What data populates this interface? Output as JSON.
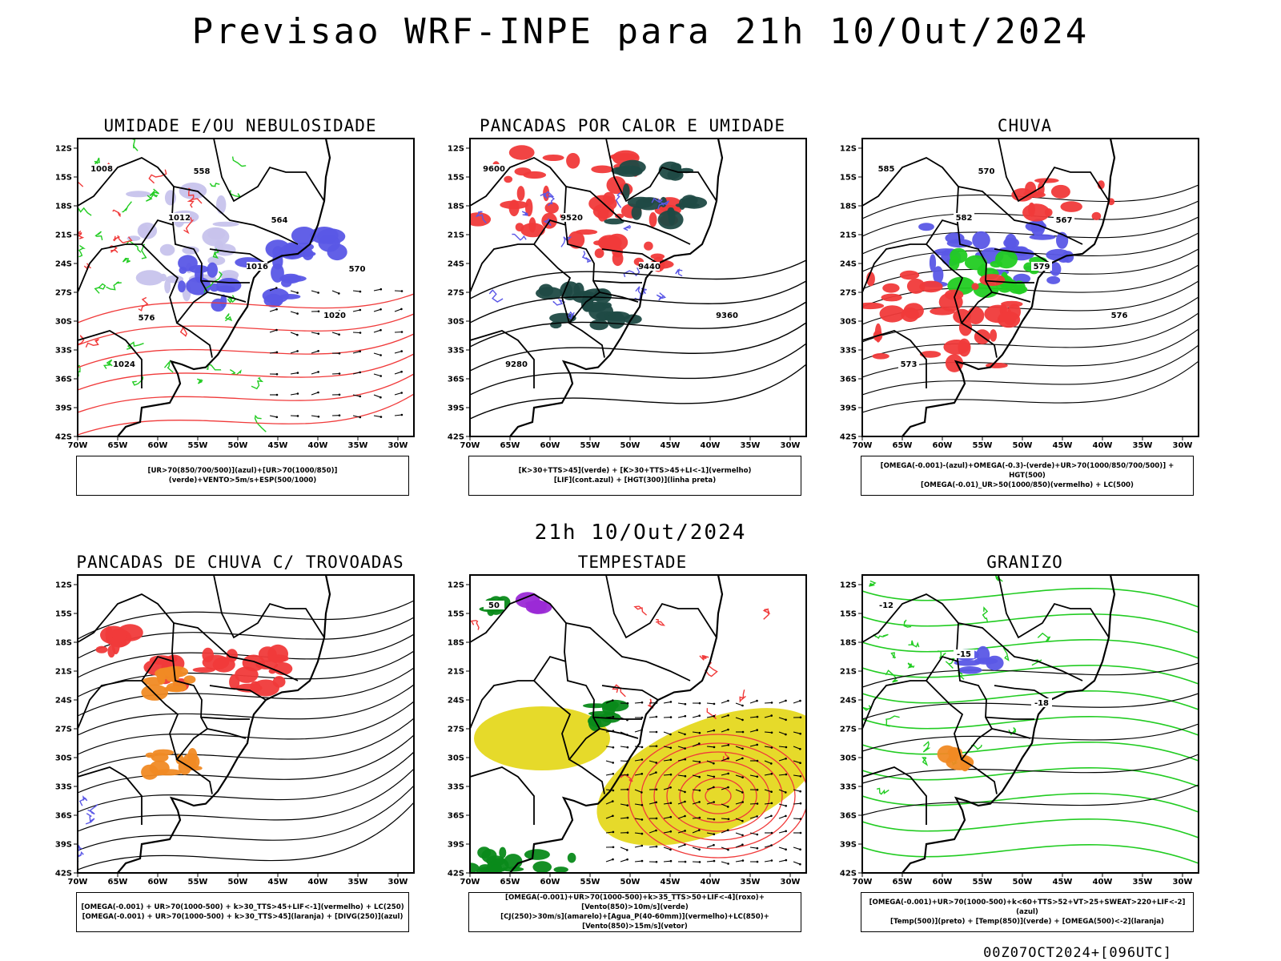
{
  "header": {
    "title": "Previsao WRF-INPE  para 21h 10/Out/2024"
  },
  "middle": {
    "subtitle": "21h 10/Out/2024"
  },
  "footer": {
    "run": "00Z07OCT2024+[096UTC]"
  },
  "colors": {
    "blue_light": "#c7c3ec",
    "blue": "#5a57e6",
    "green": "#22cc22",
    "red": "#f03a3a",
    "dark_teal": "#1f4a44",
    "yellow": "#e6da2a",
    "orange": "#f08a24",
    "purple": "#9b2ad6"
  },
  "chart_data": [
    {
      "type": "map",
      "id": "umidade",
      "title": "UMIDADE E/OU NEBULOSIDADE",
      "legend": [
        "[UR>70(850/700/500)](azul)+[UR>70(1000/850)](verde)+VENTO>5m/s+ESP(500/1000)"
      ],
      "lat_labels": [
        "12S",
        "15S",
        "18S",
        "21S",
        "24S",
        "27S",
        "30S",
        "33S",
        "36S",
        "39S",
        "42S"
      ],
      "lon_labels": [
        "70W",
        "65W",
        "60W",
        "55W",
        "50W",
        "45W",
        "40W",
        "35W",
        "30W"
      ],
      "contour_labels": [
        "1008",
        "1012",
        "1016",
        "1020",
        "1024",
        "558",
        "564",
        "570",
        "576"
      ]
    },
    {
      "type": "map",
      "id": "pancadas",
      "title": "PANCADAS POR CALOR E UMIDADE",
      "legend": [
        "[K>30+TTS>45](verde) + [K>30+TTS>45+LI<-1](vermelho)",
        "[LIF](cont.azul) + [HGT(300)](linha preta)"
      ],
      "lat_labels": [
        "12S",
        "15S",
        "18S",
        "21S",
        "24S",
        "27S",
        "30S",
        "33S",
        "36S",
        "39S",
        "42S"
      ],
      "lon_labels": [
        "70W",
        "65W",
        "60W",
        "55W",
        "50W",
        "45W",
        "40W",
        "35W",
        "30W"
      ],
      "contour_labels": [
        "9600",
        "9520",
        "9440",
        "9360",
        "9280"
      ]
    },
    {
      "type": "map",
      "id": "chuva",
      "title": "CHUVA",
      "legend": [
        "[OMEGA(-0.001)-(azul)+OMEGA(-0.3)-(verde)+UR>70(1000/850/700/500)] + HGT(500)",
        "[OMEGA(-0.01)_UR>50(1000/850)(vermelho) + LC(500)"
      ],
      "lat_labels": [
        "12S",
        "15S",
        "18S",
        "21S",
        "24S",
        "27S",
        "30S",
        "33S",
        "36S",
        "39S",
        "42S"
      ],
      "lon_labels": [
        "70W",
        "65W",
        "60W",
        "55W",
        "50W",
        "45W",
        "40W",
        "35W",
        "30W"
      ],
      "contour_labels": [
        "585",
        "582",
        "579",
        "576",
        "573",
        "570",
        "567"
      ]
    },
    {
      "type": "map",
      "id": "trovoadas",
      "title": "PANCADAS DE CHUVA C/ TROVOADAS",
      "legend": [
        "[OMEGA(-0.001) + UR>70(1000-500) + k>30_TTS>45+LIF<-1](vermelho) + LC(250)",
        "[OMEGA(-0.001) + UR>70(1000-500) + k>30_TTS>45](laranja) + [DIVG(250)](azul)"
      ],
      "lat_labels": [
        "12S",
        "15S",
        "18S",
        "21S",
        "24S",
        "27S",
        "30S",
        "33S",
        "36S",
        "39S",
        "42S"
      ],
      "lon_labels": [
        "70W",
        "65W",
        "60W",
        "55W",
        "50W",
        "45W",
        "40W",
        "35W",
        "30W"
      ],
      "contour_labels": []
    },
    {
      "type": "map",
      "id": "tempestade",
      "title": "TEMPESTADE",
      "legend": [
        "[OMEGA(-0.001)+UR>70(1000-500)+k>35_TTS>50+LIF<-4](roxo)+[Vento(850)>10m/s](verde)",
        "[CJ(250)>30m/s](amarelo)+[Agua_P(40-60mm)](vermelho)+LC(850)+[Vento(850)>15m/s](vetor)"
      ],
      "lat_labels": [
        "12S",
        "15S",
        "18S",
        "21S",
        "24S",
        "27S",
        "30S",
        "33S",
        "36S",
        "39S",
        "42S"
      ],
      "lon_labels": [
        "70W",
        "65W",
        "60W",
        "55W",
        "50W",
        "45W",
        "40W",
        "35W",
        "30W"
      ],
      "contour_labels": [
        "50"
      ]
    },
    {
      "type": "map",
      "id": "granizo",
      "title": "GRANIZO",
      "legend": [
        "[OMEGA(-0.001)+UR>70(1000-500)+k<60+TTS>52+VT>25+SWEAT>220+LIF<-2](azul)",
        "[Temp(500)](preto) + [Temp(850)](verde) + [OMEGA(500)<-2](laranja)"
      ],
      "lat_labels": [
        "12S",
        "15S",
        "18S",
        "21S",
        "24S",
        "27S",
        "30S",
        "33S",
        "36S",
        "39S",
        "42S"
      ],
      "lon_labels": [
        "70W",
        "65W",
        "60W",
        "55W",
        "50W",
        "45W",
        "40W",
        "35W",
        "30W"
      ],
      "contour_labels": [
        "-12",
        "-15",
        "-18"
      ]
    }
  ]
}
